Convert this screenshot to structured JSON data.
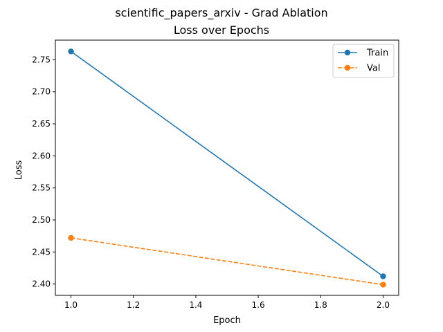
{
  "chart_data": {
    "type": "line",
    "title": "scientific_papers_arxiv - Grad Ablation",
    "subtitle": "Loss over Epochs",
    "xlabel": "Epoch",
    "ylabel": "Loss",
    "x": [
      1.0,
      2.0
    ],
    "xlim": [
      0.95,
      2.05
    ],
    "ylim": [
      2.3823,
      2.7807
    ],
    "xticks": [
      "1.0",
      "1.2",
      "1.4",
      "1.6",
      "1.8",
      "2.0"
    ],
    "yticks": [
      "2.40",
      "2.45",
      "2.50",
      "2.55",
      "2.60",
      "2.65",
      "2.70",
      "2.75"
    ],
    "grid": false,
    "legend_position": "top-right",
    "series": [
      {
        "name": "Train",
        "values": [
          2.763,
          2.412
        ],
        "color": "#1f77b4",
        "line_style": "solid",
        "marker": "circle"
      },
      {
        "name": "Val",
        "values": [
          2.472,
          2.399
        ],
        "color": "#ff7f0e",
        "line_style": "dashed",
        "marker": "circle"
      }
    ]
  }
}
